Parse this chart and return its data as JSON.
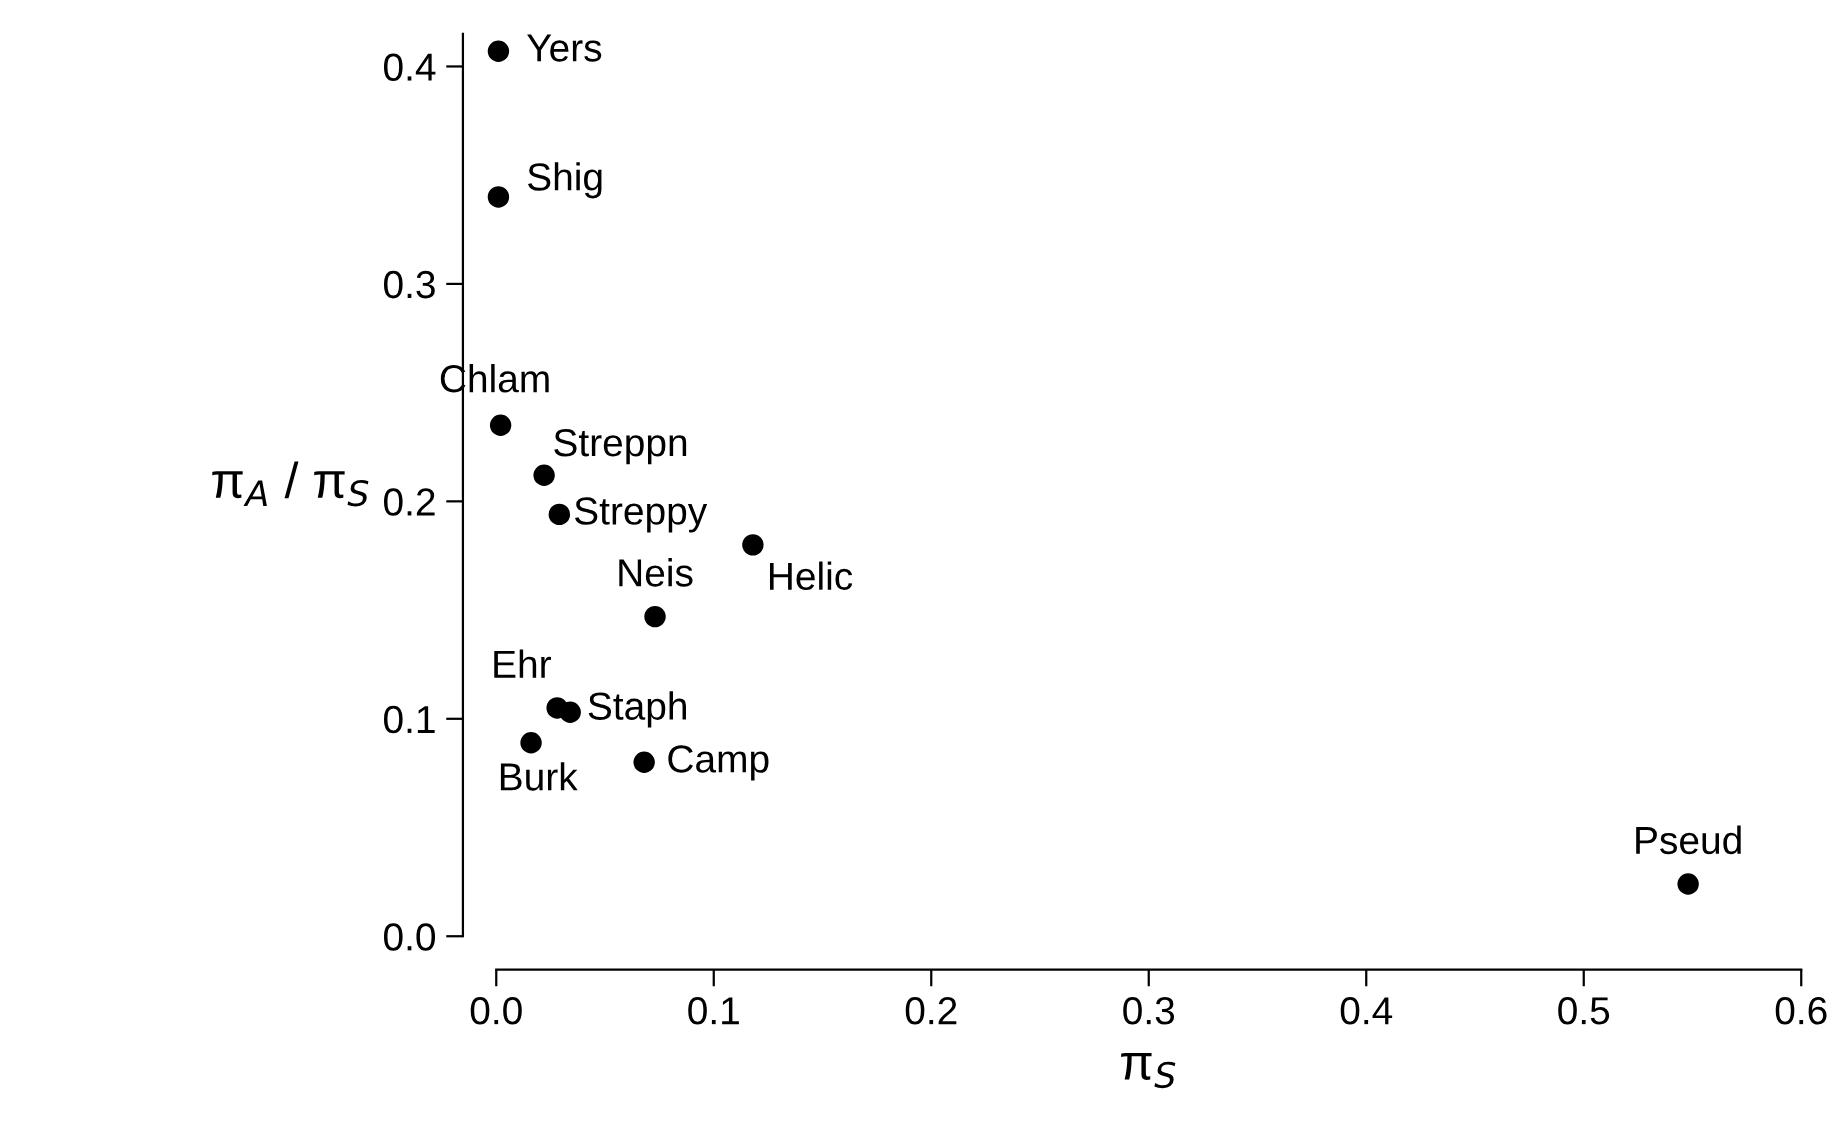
{
  "chart_data": {
    "type": "scatter",
    "xlabel": "π$_{S}$",
    "ylabel": "π$_{A}$ / π$_{S}$",
    "x": [
      0.001,
      0.001,
      0.002,
      0.022,
      0.029,
      0.118,
      0.073,
      0.028,
      0.034,
      0.016,
      0.068,
      0.548
    ],
    "values": [
      0.407,
      0.34,
      0.235,
      0.212,
      0.194,
      0.18,
      0.147,
      0.105,
      0.103,
      0.089,
      0.08,
      0.024
    ],
    "color": "#000000",
    "marker": "circle",
    "annotations": [
      {
        "text": "Yers",
        "x": 0.001,
        "y": 0.407
      },
      {
        "text": "Shig",
        "x": 0.001,
        "y": 0.34
      },
      {
        "text": "Chlam",
        "x": 0.002,
        "y": 0.235
      },
      {
        "text": "Streppn",
        "x": 0.022,
        "y": 0.212
      },
      {
        "text": "Streppy",
        "x": 0.029,
        "y": 0.194
      },
      {
        "text": "Helic",
        "x": 0.118,
        "y": 0.18
      },
      {
        "text": "Neis",
        "x": 0.073,
        "y": 0.147
      },
      {
        "text": "Ehr",
        "x": 0.028,
        "y": 0.105
      },
      {
        "text": "Staph",
        "x": 0.034,
        "y": 0.103
      },
      {
        "text": "Burk",
        "x": 0.016,
        "y": 0.089
      },
      {
        "text": "Camp",
        "x": 0.068,
        "y": 0.08
      },
      {
        "text": "Pseud",
        "x": 0.548,
        "y": 0.024
      }
    ],
    "xlim": [
      0,
      0.6
    ],
    "ylim": [
      0,
      0.415
    ],
    "xticks": [
      {
        "value": 0,
        "label": "0.0"
      },
      0.1,
      0.2,
      0.3,
      0.4,
      0.5,
      0.6
    ],
    "yticks": [
      {
        "value": 0,
        "label": "0.0"
      },
      0.1,
      0.2,
      0.3,
      0.4
    ],
    "grid": false,
    "legend": false
  }
}
